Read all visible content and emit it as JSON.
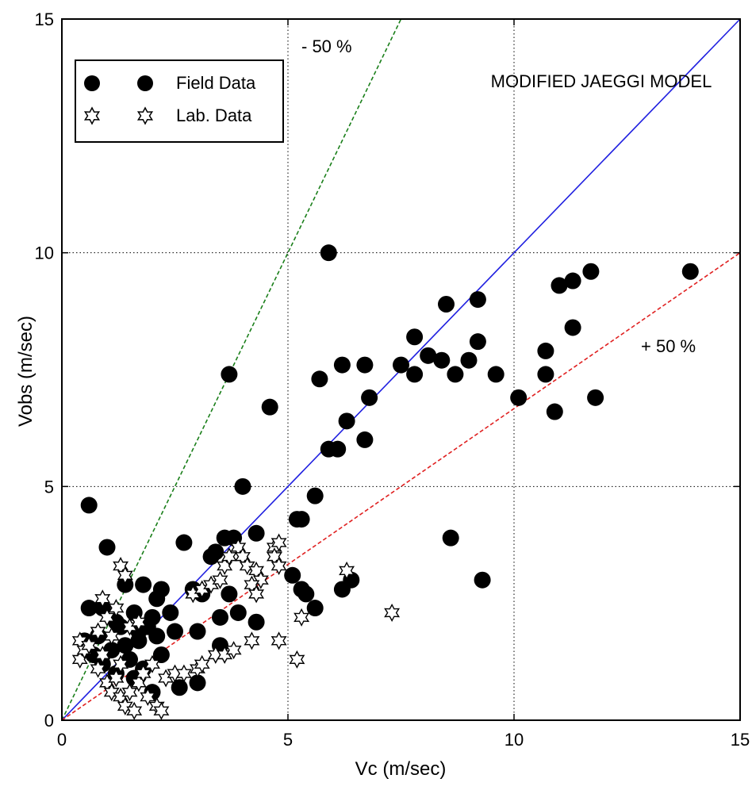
{
  "chart_data": {
    "type": "scatter",
    "title": "MODIFIED JAEGGI MODEL",
    "xlabel": "Vc (m/sec)",
    "ylabel": "Vobs  (m/sec)",
    "xlim": [
      0,
      15
    ],
    "ylim": [
      0,
      15
    ],
    "xticks": [
      "0",
      "5",
      "10",
      "15"
    ],
    "yticks": [
      "0",
      "5",
      "10",
      "15"
    ],
    "grid": true,
    "legend_position": "top-left",
    "annotations": [
      {
        "text": "- 50 %",
        "x": 5.3,
        "y": 14.5
      },
      {
        "text": "+ 50 %",
        "x": 13.0,
        "y": 8.0
      }
    ],
    "reference_lines": [
      {
        "name": "- 50 %",
        "slope": 2.0,
        "color": "#1a7f1a",
        "dashed": true
      },
      {
        "name": "1:1",
        "slope": 1.0,
        "color": "#1f1fe0",
        "dashed": false
      },
      {
        "name": "+ 50 %",
        "slope": 0.6667,
        "color": "#e02020",
        "dashed": true
      }
    ],
    "series": [
      {
        "name": "Field Data",
        "marker": "filled-circle",
        "color": "#000000",
        "points": [
          [
            0.6,
            4.6
          ],
          [
            3.7,
            7.4
          ],
          [
            4.6,
            6.7
          ],
          [
            4.0,
            5.0
          ],
          [
            5.9,
            10.0
          ],
          [
            5.7,
            7.3
          ],
          [
            6.2,
            7.6
          ],
          [
            6.7,
            7.6
          ],
          [
            7.5,
            7.6
          ],
          [
            6.8,
            6.9
          ],
          [
            6.3,
            6.4
          ],
          [
            5.9,
            5.8
          ],
          [
            6.1,
            5.8
          ],
          [
            6.7,
            6.0
          ],
          [
            7.8,
            8.2
          ],
          [
            8.5,
            8.9
          ],
          [
            9.2,
            9.0
          ],
          [
            7.8,
            7.4
          ],
          [
            8.1,
            7.8
          ],
          [
            8.4,
            7.7
          ],
          [
            8.7,
            7.4
          ],
          [
            9.0,
            7.7
          ],
          [
            9.2,
            8.1
          ],
          [
            9.6,
            7.4
          ],
          [
            10.1,
            6.9
          ],
          [
            10.7,
            7.9
          ],
          [
            10.7,
            7.4
          ],
          [
            11.0,
            9.3
          ],
          [
            11.3,
            9.4
          ],
          [
            11.7,
            9.6
          ],
          [
            11.3,
            8.4
          ],
          [
            11.8,
            6.9
          ],
          [
            10.9,
            6.6
          ],
          [
            13.9,
            9.6
          ],
          [
            8.6,
            3.9
          ],
          [
            9.3,
            3.0
          ],
          [
            5.6,
            4.8
          ],
          [
            5.2,
            4.3
          ],
          [
            5.3,
            4.3
          ],
          [
            4.3,
            4.0
          ],
          [
            3.6,
            3.9
          ],
          [
            3.8,
            3.9
          ],
          [
            3.4,
            3.6
          ],
          [
            3.3,
            3.5
          ],
          [
            2.7,
            3.8
          ],
          [
            1.0,
            3.7
          ],
          [
            1.4,
            2.9
          ],
          [
            1.8,
            2.9
          ],
          [
            2.2,
            2.8
          ],
          [
            2.9,
            2.8
          ],
          [
            3.1,
            2.7
          ],
          [
            3.7,
            2.7
          ],
          [
            3.9,
            2.3
          ],
          [
            4.3,
            2.1
          ],
          [
            5.1,
            3.1
          ],
          [
            5.3,
            2.8
          ],
          [
            5.4,
            2.7
          ],
          [
            5.6,
            2.4
          ],
          [
            6.2,
            2.8
          ],
          [
            6.4,
            3.0
          ],
          [
            0.6,
            2.4
          ],
          [
            0.9,
            2.4
          ],
          [
            1.2,
            2.1
          ],
          [
            1.6,
            2.3
          ],
          [
            2.0,
            2.2
          ],
          [
            2.4,
            2.3
          ],
          [
            2.5,
            1.9
          ],
          [
            0.5,
            1.7
          ],
          [
            0.8,
            1.8
          ],
          [
            1.1,
            1.5
          ],
          [
            1.4,
            1.6
          ],
          [
            1.7,
            1.7
          ],
          [
            2.1,
            1.8
          ],
          [
            2.2,
            1.4
          ],
          [
            0.9,
            1.2
          ],
          [
            1.2,
            1.0
          ],
          [
            1.5,
            1.3
          ],
          [
            1.8,
            1.1
          ],
          [
            3.0,
            1.9
          ],
          [
            3.5,
            1.6
          ],
          [
            2.0,
            0.6
          ],
          [
            2.6,
            0.7
          ],
          [
            3.0,
            0.8
          ],
          [
            1.7,
            1.9
          ],
          [
            2.1,
            2.6
          ],
          [
            3.5,
            2.2
          ],
          [
            1.3,
            2.0
          ],
          [
            1.9,
            2.0
          ],
          [
            0.7,
            1.4
          ],
          [
            1.6,
            0.9
          ]
        ]
      },
      {
        "name": "Lab. Data",
        "marker": "star",
        "color": "#000000",
        "points": [
          [
            0.4,
            1.7
          ],
          [
            0.4,
            1.3
          ],
          [
            0.5,
            1.5
          ],
          [
            0.6,
            1.6
          ],
          [
            0.8,
            1.9
          ],
          [
            0.9,
            1.4
          ],
          [
            0.8,
            1.1
          ],
          [
            1.0,
            0.8
          ],
          [
            1.1,
            0.6
          ],
          [
            1.2,
            0.9
          ],
          [
            1.3,
            1.2
          ],
          [
            1.3,
            0.5
          ],
          [
            1.4,
            0.3
          ],
          [
            1.5,
            0.6
          ],
          [
            1.6,
            0.2
          ],
          [
            1.7,
            0.8
          ],
          [
            1.8,
            1.0
          ],
          [
            1.9,
            0.5
          ],
          [
            2.0,
            1.2
          ],
          [
            2.1,
            0.3
          ],
          [
            2.2,
            0.2
          ],
          [
            2.3,
            0.9
          ],
          [
            2.5,
            1.0
          ],
          [
            2.7,
            1.0
          ],
          [
            3.0,
            1.1
          ],
          [
            3.1,
            1.2
          ],
          [
            3.4,
            1.4
          ],
          [
            3.6,
            1.4
          ],
          [
            3.8,
            1.5
          ],
          [
            1.3,
            3.3
          ],
          [
            1.4,
            3.1
          ],
          [
            2.9,
            2.7
          ],
          [
            3.1,
            2.8
          ],
          [
            3.3,
            2.9
          ],
          [
            3.5,
            3.0
          ],
          [
            3.6,
            3.3
          ],
          [
            3.7,
            3.5
          ],
          [
            3.9,
            3.7
          ],
          [
            4.0,
            3.5
          ],
          [
            4.1,
            3.3
          ],
          [
            4.3,
            3.2
          ],
          [
            4.4,
            3.0
          ],
          [
            4.2,
            2.9
          ],
          [
            4.3,
            2.7
          ],
          [
            4.7,
            3.7
          ],
          [
            4.8,
            3.8
          ],
          [
            4.7,
            3.5
          ],
          [
            4.8,
            3.3
          ],
          [
            4.2,
            1.7
          ],
          [
            4.8,
            1.7
          ],
          [
            5.2,
            1.3
          ],
          [
            5.3,
            2.2
          ],
          [
            6.3,
            3.2
          ],
          [
            7.3,
            2.3
          ],
          [
            1.0,
            2.2
          ],
          [
            1.2,
            2.4
          ],
          [
            0.9,
            2.6
          ],
          [
            1.1,
            1.8
          ],
          [
            1.5,
            2.0
          ],
          [
            1.7,
            2.1
          ]
        ]
      }
    ]
  }
}
